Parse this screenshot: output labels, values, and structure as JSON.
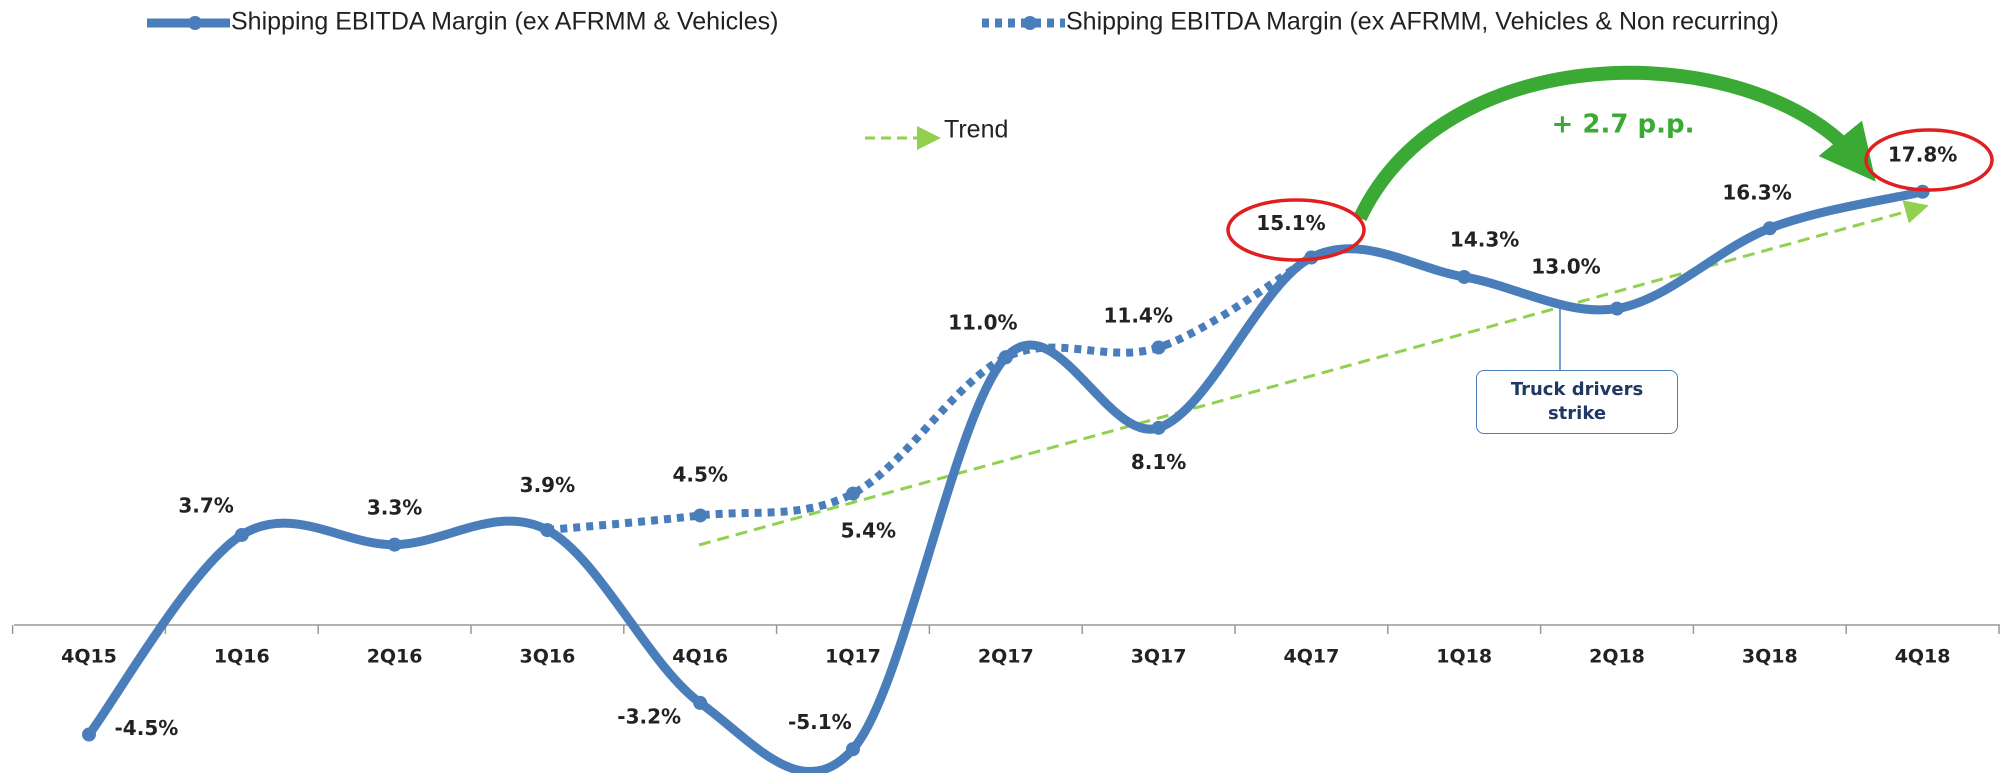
{
  "chart_data": {
    "type": "line",
    "categories": [
      "4Q15",
      "1Q16",
      "2Q16",
      "3Q16",
      "4Q16",
      "1Q17",
      "2Q17",
      "3Q17",
      "4Q17",
      "1Q18",
      "2Q18",
      "3Q18",
      "4Q18"
    ],
    "series": [
      {
        "name": "Shipping EBITDA Margin (ex AFRMM & Vehicles)",
        "color": "#4a7ebb",
        "style": "solid",
        "values": [
          -4.5,
          3.7,
          3.3,
          3.9,
          -3.2,
          -5.1,
          11.0,
          8.1,
          15.1,
          14.3,
          13.0,
          16.3,
          17.8
        ],
        "value_labels": [
          "-4.5%",
          "3.7%",
          "3.3%",
          "3.9%",
          "-3.2%",
          "-5.1%",
          "11.0%",
          "8.1%",
          "15.1%",
          "14.3%",
          "13.0%",
          "16.3%",
          "17.8%"
        ]
      },
      {
        "name": "Shipping EBITDA Margin (ex AFRMM, Vehicles & Non recurring)",
        "color": "#4a7ebb",
        "style": "dotted",
        "values": [
          null,
          null,
          null,
          3.9,
          4.5,
          5.4,
          11.0,
          11.4,
          15.1,
          null,
          null,
          null,
          null
        ],
        "value_labels": [
          null,
          null,
          null,
          null,
          "4.5%",
          "5.4%",
          null,
          "11.4%",
          null,
          null,
          null,
          null,
          null
        ]
      }
    ],
    "ylim": [
      -6,
      22
    ],
    "annotations": {
      "trend": "Trend",
      "increase": "+ 2.7 p.p.",
      "event": "Truck drivers strike"
    }
  }
}
